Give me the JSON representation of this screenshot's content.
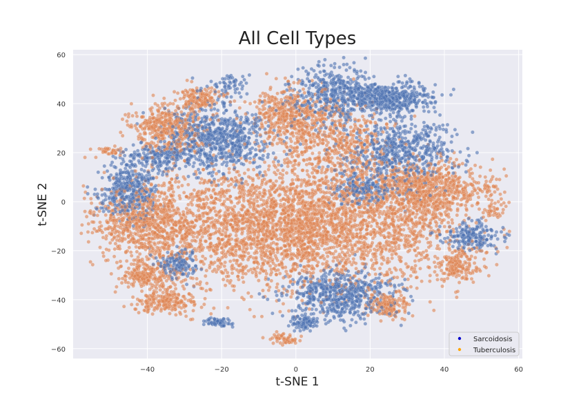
{
  "chart_data": {
    "type": "scatter",
    "title": "All Cell Types",
    "xlabel": "t-SNE 1",
    "ylabel": "t-SNE 2",
    "xlim": [
      -60,
      61
    ],
    "ylim": [
      -64,
      62
    ],
    "xticks": [
      -40,
      -20,
      0,
      20,
      40,
      60
    ],
    "yticks": [
      -60,
      -40,
      -20,
      0,
      20,
      40,
      60
    ],
    "grid": true,
    "legend_position": "bottom-right",
    "series": [
      {
        "name": "Sarcoidosis",
        "color": "#4c72b0",
        "legend_marker_color": "#0000cc",
        "clusters": [
          {
            "cx": -21,
            "cy": 26,
            "sx": 7,
            "sy": 7,
            "n": 700
          },
          {
            "cx": -45,
            "cy": 5,
            "sx": 4,
            "sy": 6,
            "n": 400
          },
          {
            "cx": -36,
            "cy": 18,
            "sx": 5,
            "sy": 3,
            "n": 200
          },
          {
            "cx": 10,
            "cy": 44,
            "sx": 6,
            "sy": 6,
            "n": 450
          },
          {
            "cx": 25,
            "cy": 42,
            "sx": 6,
            "sy": 3,
            "n": 450
          },
          {
            "cx": 28,
            "cy": 20,
            "sx": 7,
            "sy": 7,
            "n": 600
          },
          {
            "cx": 18,
            "cy": 5,
            "sx": 4,
            "sy": 3,
            "n": 200
          },
          {
            "cx": 12,
            "cy": -38,
            "sx": 7,
            "sy": 5,
            "n": 600
          },
          {
            "cx": 47,
            "cy": -14,
            "sx": 4,
            "sy": 3,
            "n": 200
          },
          {
            "cx": -32,
            "cy": -25,
            "sx": 3,
            "sy": 3,
            "n": 150
          },
          {
            "cx": -21,
            "cy": -49,
            "sx": 2,
            "sy": 1,
            "n": 60
          },
          {
            "cx": 3,
            "cy": -49,
            "sx": 2,
            "sy": 1.5,
            "n": 80
          },
          {
            "cx": -18,
            "cy": 48,
            "sx": 2,
            "sy": 2,
            "n": 50
          }
        ]
      },
      {
        "name": "Tuberculosis",
        "color": "#dd8452",
        "legend_marker_color": "#ffa500",
        "clusters": [
          {
            "cx": 0,
            "cy": -10,
            "sx": 22,
            "sy": 12,
            "n": 3500
          },
          {
            "cx": -40,
            "cy": -8,
            "sx": 7,
            "sy": 7,
            "n": 600
          },
          {
            "cx": -35,
            "cy": 30,
            "sx": 5,
            "sy": 5,
            "n": 400
          },
          {
            "cx": -26,
            "cy": 42,
            "sx": 3,
            "sy": 2.5,
            "n": 150
          },
          {
            "cx": -2,
            "cy": 36,
            "sx": 5,
            "sy": 6,
            "n": 400
          },
          {
            "cx": 10,
            "cy": 24,
            "sx": 8,
            "sy": 8,
            "n": 500
          },
          {
            "cx": 35,
            "cy": 5,
            "sx": 8,
            "sy": 6,
            "n": 700
          },
          {
            "cx": -40,
            "cy": -30,
            "sx": 4,
            "sy": 3,
            "n": 200
          },
          {
            "cx": -35,
            "cy": -41,
            "sx": 4,
            "sy": 2.5,
            "n": 200
          },
          {
            "cx": 25,
            "cy": -42,
            "sx": 3,
            "sy": 2.5,
            "n": 150
          },
          {
            "cx": 44,
            "cy": -26,
            "sx": 3,
            "sy": 3,
            "n": 150
          },
          {
            "cx": -50,
            "cy": 21,
            "sx": 1.5,
            "sy": 1,
            "n": 30
          },
          {
            "cx": -3,
            "cy": -56,
            "sx": 2,
            "sy": 1,
            "n": 50
          },
          {
            "cx": 52,
            "cy": 6,
            "sx": 1.5,
            "sy": 1.5,
            "n": 25
          },
          {
            "cx": 53,
            "cy": -3,
            "sx": 1.5,
            "sy": 1.5,
            "n": 25
          }
        ]
      }
    ]
  }
}
